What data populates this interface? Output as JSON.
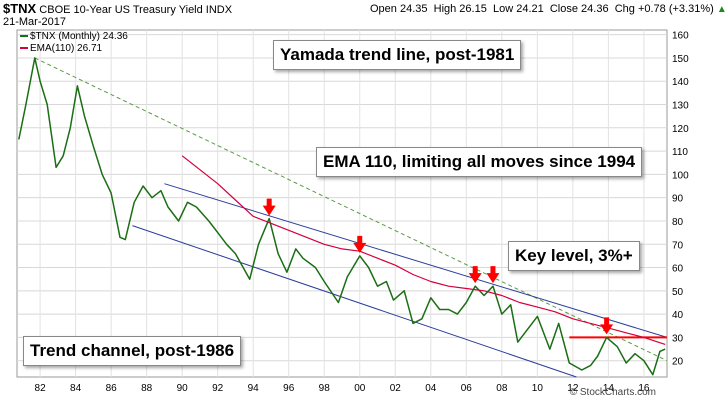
{
  "header": {
    "symbol": "$TNX",
    "name": "CBOE 10-Year US Treasury Yield INDX",
    "date": "21-Mar-2017",
    "open": "Open 24.35",
    "high": "High 26.15",
    "low": "Low 24.21",
    "close": "Close 24.36",
    "chg": "Chg +0.78 (+3.31%)",
    "chg_icon": "up-triangle-icon",
    "legend_price": "$TNX (Monthly) 24.36",
    "legend_ema": "EMA(110) 26.71",
    "copyright": "© StockCharts.com"
  },
  "colors": {
    "price": "#1a6e14",
    "ema": "#d4003c",
    "channel": "#2b3c9c",
    "yamada": "#5a9a46",
    "key_level": "#ff0000",
    "arrows": "#ff0000"
  },
  "annotations": {
    "yamada": "Yamada trend line, post-1981",
    "ema": "EMA 110, limiting all moves since 1994",
    "key": "Key level, 3%+",
    "channel": "Trend channel, post-1986"
  },
  "chart_data": {
    "type": "line",
    "title": "$TNX CBOE 10-Year US Treasury Yield INDX",
    "xlabel": "",
    "ylabel": "",
    "xlim": [
      1980.7,
      2017.3
    ],
    "ylim": [
      13,
      162
    ],
    "x_ticks": [
      "82",
      "84",
      "86",
      "88",
      "90",
      "92",
      "94",
      "96",
      "98",
      "00",
      "02",
      "04",
      "06",
      "08",
      "10",
      "12",
      "14",
      "16"
    ],
    "y_ticks": [
      20,
      30,
      40,
      50,
      60,
      70,
      80,
      90,
      100,
      110,
      120,
      130,
      140,
      150,
      160
    ],
    "grid": true,
    "series": [
      {
        "name": "$TNX (Monthly) 24.36",
        "x": [
          1980.8,
          1981.2,
          1981.7,
          1982.0,
          1982.4,
          1982.9,
          1983.3,
          1983.7,
          1984.1,
          1984.5,
          1985.0,
          1985.5,
          1986.0,
          1986.5,
          1986.8,
          1987.3,
          1987.8,
          1988.3,
          1988.8,
          1989.2,
          1989.8,
          1990.3,
          1990.8,
          1991.5,
          1992.0,
          1992.5,
          1993.0,
          1993.8,
          1994.3,
          1994.9,
          1995.4,
          1995.9,
          1996.4,
          1996.8,
          1997.5,
          1998.0,
          1998.8,
          1999.3,
          2000.0,
          2000.5,
          2001.0,
          2001.5,
          2001.9,
          2002.5,
          2003.0,
          2003.5,
          2004.0,
          2004.5,
          2005.0,
          2005.5,
          2006.0,
          2006.5,
          2007.0,
          2007.5,
          2008.0,
          2008.5,
          2008.9,
          2009.4,
          2010.0,
          2010.7,
          2011.2,
          2011.8,
          2012.5,
          2013.0,
          2013.4,
          2013.9,
          2014.5,
          2015.0,
          2015.5,
          2016.0,
          2016.5,
          2016.9,
          2017.2
        ],
        "y": [
          115,
          130,
          150,
          140,
          130,
          103,
          108,
          120,
          138,
          125,
          112,
          100,
          92,
          73,
          72,
          88,
          95,
          90,
          93,
          86,
          80,
          88,
          86,
          80,
          75,
          70,
          66,
          55,
          70,
          81,
          66,
          58,
          68,
          64,
          60,
          54,
          45,
          56,
          65,
          60,
          52,
          54,
          46,
          50,
          36,
          38,
          47,
          42,
          42,
          40,
          45,
          52,
          48,
          52,
          40,
          44,
          28,
          33,
          39,
          25,
          36,
          19,
          16,
          18,
          22,
          30,
          26,
          19,
          23,
          20,
          14,
          24,
          25
        ]
      },
      {
        "name": "EMA(110) 26.71",
        "x": [
          1990.0,
          1991.0,
          1992.0,
          1993.0,
          1994.0,
          1995.0,
          1996.0,
          1997.0,
          1998.0,
          1999.0,
          2000.0,
          2001.0,
          2002.0,
          2003.0,
          2004.0,
          2005.0,
          2006.0,
          2007.0,
          2008.0,
          2009.0,
          2010.0,
          2011.0,
          2012.0,
          2013.0,
          2014.0,
          2015.0,
          2016.0,
          2017.2
        ],
        "y": [
          108,
          102,
          96,
          89,
          82,
          79,
          76,
          73,
          70,
          68,
          67,
          64,
          61,
          57,
          54,
          52,
          51,
          50,
          48,
          45,
          43,
          41,
          38,
          36,
          34,
          32,
          30,
          27
        ]
      }
    ],
    "reference_lines": [
      {
        "name": "Yamada trend line",
        "x": [
          1981.7,
          2017.3
        ],
        "y": [
          150,
          20
        ],
        "style": "dashed"
      },
      {
        "name": "Trend channel upper",
        "x": [
          1989.0,
          2017.3
        ],
        "y": [
          96,
          30
        ],
        "style": "solid"
      },
      {
        "name": "Trend channel lower",
        "x": [
          1987.2,
          2012.2
        ],
        "y": [
          78,
          13
        ],
        "style": "solid"
      },
      {
        "name": "Key level",
        "x": [
          2011.8,
          2017.3
        ],
        "y": [
          30,
          30
        ],
        "style": "solid"
      }
    ],
    "arrows": [
      {
        "x": 1994.9,
        "y": 81
      },
      {
        "x": 2000.0,
        "y": 65
      },
      {
        "x": 2006.5,
        "y": 52
      },
      {
        "x": 2007.5,
        "y": 52
      },
      {
        "x": 2013.9,
        "y": 30
      }
    ]
  }
}
